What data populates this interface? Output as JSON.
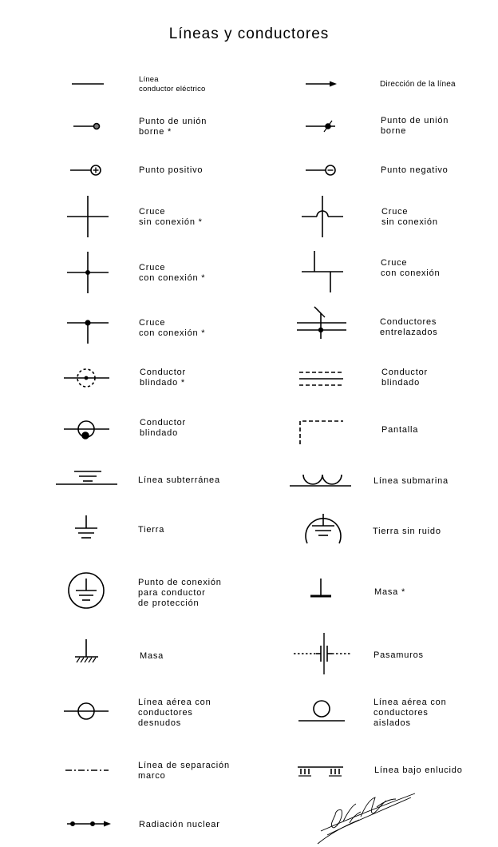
{
  "title": "Líneas y conductores",
  "rows": [
    {
      "left": [
        "Línea",
        "conductor eléctrico"
      ],
      "right": [
        "Dirección de la línea"
      ]
    },
    {
      "left": [
        "Punto de unión",
        "borne *"
      ],
      "right": [
        "Punto de unión",
        "borne"
      ]
    },
    {
      "left": [
        "Punto positivo"
      ],
      "right": [
        "Punto negativo"
      ]
    },
    {
      "left": [
        "Cruce",
        "sin conexión *"
      ],
      "right": [
        "Cruce",
        "sin conexión"
      ]
    },
    {
      "left": [
        "Cruce",
        "con conexión *"
      ],
      "right": [
        "Cruce",
        "con conexión"
      ]
    },
    {
      "left": [
        "Cruce",
        "con conexión *"
      ],
      "right": [
        "Conductores",
        "entrelazados"
      ]
    },
    {
      "left": [
        "Conductor",
        "blindado *"
      ],
      "right": [
        "Conductor",
        "blindado"
      ]
    },
    {
      "left": [
        "Conductor",
        "blindado"
      ],
      "right": [
        "Pantalla"
      ]
    },
    {
      "left": [
        "Línea subterránea"
      ],
      "right": [
        "Línea submarina"
      ]
    },
    {
      "left": [
        "Tierra"
      ],
      "right": [
        "Tierra sin ruido"
      ]
    },
    {
      "left": [
        "Punto de conexión",
        "para conductor",
        "de protección"
      ],
      "right": [
        "Masa *"
      ]
    },
    {
      "left": [
        "Masa"
      ],
      "right": [
        "Pasamuros"
      ]
    },
    {
      "left": [
        "Línea aérea con",
        "conductores",
        "desnudos"
      ],
      "right": [
        "Línea aérea con",
        "conductores",
        "aislados"
      ]
    },
    {
      "left": [
        "Línea de separación",
        "marco"
      ],
      "right": [
        "Línea bajo enlucido"
      ]
    },
    {
      "left": [
        "Radiación nuclear"
      ],
      "right": []
    }
  ]
}
